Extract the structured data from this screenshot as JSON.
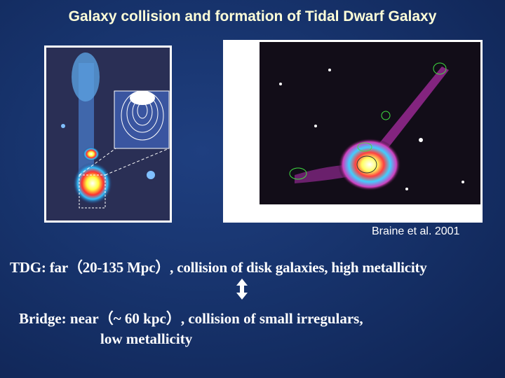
{
  "slide": {
    "title": "Galaxy collision and formation of Tidal Dwarf Galaxy",
    "caption": "Braine et al. 2001",
    "tdg_line": "TDG: far（20-135 Mpc）, collision of disk galaxies, high metallicity",
    "bridge_line_1": "Bridge: near（~ 60 kpc）, collision of small irregulars,",
    "bridge_line_2": "low metallicity"
  }
}
